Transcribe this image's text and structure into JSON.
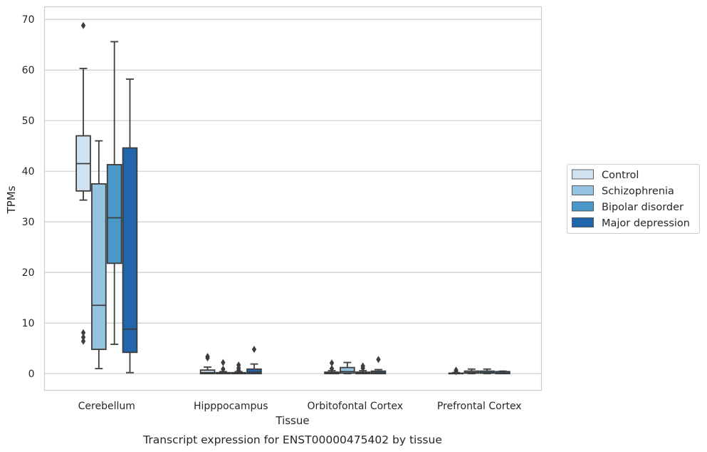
{
  "caption": "Transcript expression for ENST00000475402 by tissue",
  "chart_data": {
    "type": "boxplot",
    "xlabel": "Tissue",
    "ylabel": "TPMs",
    "ylim": [
      -3.3,
      72.5
    ],
    "yticks": [
      0,
      10,
      20,
      30,
      40,
      50,
      60,
      70
    ],
    "grid": "horizontal",
    "legend_position": "right",
    "categories": [
      "Cerebellum",
      "Hipppocampus",
      "Orbitofontal Cortex",
      "Prefrontal Cortex"
    ],
    "series": [
      {
        "name": "Control",
        "color": "#d0e1f2",
        "boxes": [
          {
            "whislo": 34.3,
            "q1": 36.1,
            "med": 41.5,
            "q3": 47.0,
            "whishi": 60.3,
            "fliers": [
              68.8,
              8.1,
              7.2,
              6.4
            ]
          },
          {
            "whislo": 0.0,
            "q1": 0.0,
            "med": 0.2,
            "q3": 0.7,
            "whishi": 1.3,
            "fliers": [
              3.1,
              3.4
            ]
          },
          {
            "whislo": 0.0,
            "q1": 0.0,
            "med": 0.1,
            "q3": 0.3,
            "whishi": 0.6,
            "fliers": [
              2.1,
              1.0
            ]
          },
          {
            "whislo": 0.0,
            "q1": 0.0,
            "med": 0.0,
            "q3": 0.1,
            "whishi": 0.2,
            "fliers": [
              0.7,
              0.4
            ]
          }
        ]
      },
      {
        "name": "Schizophrenia",
        "color": "#94c4df",
        "boxes": [
          {
            "whislo": 1.0,
            "q1": 4.8,
            "med": 13.5,
            "q3": 37.5,
            "whishi": 46.0,
            "fliers": []
          },
          {
            "whislo": 0.0,
            "q1": 0.0,
            "med": 0.0,
            "q3": 0.2,
            "whishi": 0.4,
            "fliers": [
              2.2,
              0.9
            ]
          },
          {
            "whislo": 0.0,
            "q1": 0.1,
            "med": 0.4,
            "q3": 1.2,
            "whishi": 2.2,
            "fliers": []
          },
          {
            "whislo": 0.0,
            "q1": 0.1,
            "med": 0.2,
            "q3": 0.5,
            "whishi": 0.9,
            "fliers": []
          }
        ]
      },
      {
        "name": "Bipolar disorder",
        "color": "#4a98c9",
        "boxes": [
          {
            "whislo": 5.8,
            "q1": 21.8,
            "med": 30.8,
            "q3": 41.3,
            "whishi": 65.6,
            "fliers": []
          },
          {
            "whislo": 0.0,
            "q1": 0.0,
            "med": 0.0,
            "q3": 0.2,
            "whishi": 0.4,
            "fliers": [
              1.7,
              1.1,
              0.7
            ]
          },
          {
            "whislo": 0.0,
            "q1": 0.0,
            "med": 0.1,
            "q3": 0.3,
            "whishi": 0.6,
            "fliers": [
              1.5,
              1.1
            ]
          },
          {
            "whislo": 0.0,
            "q1": 0.1,
            "med": 0.2,
            "q3": 0.5,
            "whishi": 0.9,
            "fliers": []
          }
        ]
      },
      {
        "name": "Major depression",
        "color": "#2166ac",
        "boxes": [
          {
            "whislo": 0.2,
            "q1": 4.2,
            "med": 8.8,
            "q3": 44.6,
            "whishi": 58.2,
            "fliers": []
          },
          {
            "whislo": 0.0,
            "q1": 0.0,
            "med": 0.3,
            "q3": 0.9,
            "whishi": 1.9,
            "fliers": [
              4.8
            ]
          },
          {
            "whislo": 0.0,
            "q1": 0.0,
            "med": 0.2,
            "q3": 0.5,
            "whishi": 0.8,
            "fliers": [
              2.8
            ]
          },
          {
            "whislo": 0.0,
            "q1": 0.0,
            "med": 0.1,
            "q3": 0.4,
            "whishi": 0.5,
            "fliers": []
          }
        ]
      }
    ]
  }
}
